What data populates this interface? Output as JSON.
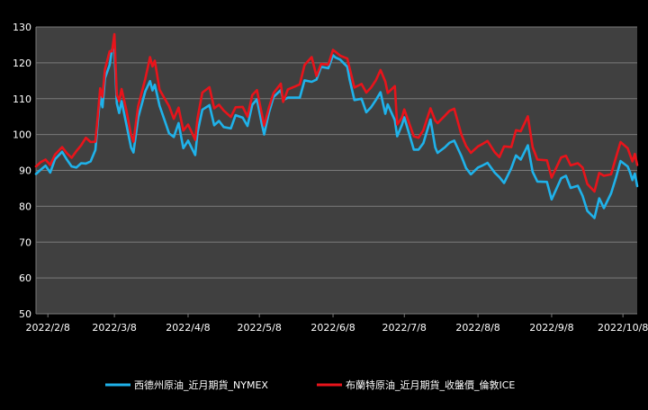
{
  "chart_data": {
    "type": "line",
    "title": "",
    "xlabel": "",
    "ylabel": "",
    "ylim": [
      50,
      130
    ],
    "yticks": [
      50,
      60,
      70,
      80,
      90,
      100,
      110,
      120,
      130
    ],
    "xlim": [
      "2022-02-03",
      "2022-10-14"
    ],
    "xtick_labels": [
      "2022/2/8",
      "2022/3/8",
      "2022/4/8",
      "2022/5/8",
      "2022/6/8",
      "2022/7/8",
      "2022/8/8",
      "2022/9/8",
      "2022/10/8"
    ],
    "grid": true,
    "legend_position": "bottom",
    "colors": {
      "background": "#000000",
      "plot_area": "#404040",
      "grid": "#7a7a7a",
      "text": "#ffffff"
    },
    "series": [
      {
        "name": "西德州原油_近月期貨_NYMEX",
        "color": "#1fb2ea",
        "points": [
          [
            "2022-02-03",
            89.0
          ],
          [
            "2022-02-05",
            90.2
          ],
          [
            "2022-02-07",
            91.3
          ],
          [
            "2022-02-09",
            89.4
          ],
          [
            "2022-02-11",
            93.1
          ],
          [
            "2022-02-14",
            95.2
          ],
          [
            "2022-02-16",
            93.0
          ],
          [
            "2022-02-18",
            91.1
          ],
          [
            "2022-02-20",
            90.8
          ],
          [
            "2022-02-22",
            92.0
          ],
          [
            "2022-02-24",
            91.9
          ],
          [
            "2022-02-26",
            92.5
          ],
          [
            "2022-02-28",
            95.7
          ],
          [
            "2022-03-01",
            103.4
          ],
          [
            "2022-03-02",
            110.5
          ],
          [
            "2022-03-03",
            107.6
          ],
          [
            "2022-03-04",
            115.7
          ],
          [
            "2022-03-06",
            119.4
          ],
          [
            "2022-03-07",
            123.7
          ],
          [
            "2022-03-08",
            123.7
          ],
          [
            "2022-03-09",
            108.7
          ],
          [
            "2022-03-10",
            106.0
          ],
          [
            "2022-03-11",
            109.3
          ],
          [
            "2022-03-13",
            103.0
          ],
          [
            "2022-03-15",
            96.4
          ],
          [
            "2022-03-16",
            95.0
          ],
          [
            "2022-03-18",
            104.7
          ],
          [
            "2022-03-21",
            112.1
          ],
          [
            "2022-03-23",
            114.9
          ],
          [
            "2022-03-24",
            112.3
          ],
          [
            "2022-03-25",
            113.9
          ],
          [
            "2022-03-27",
            108.0
          ],
          [
            "2022-03-29",
            104.2
          ],
          [
            "2022-03-31",
            100.3
          ],
          [
            "2022-04-02",
            99.3
          ],
          [
            "2022-04-04",
            103.2
          ],
          [
            "2022-04-06",
            96.2
          ],
          [
            "2022-04-08",
            98.3
          ],
          [
            "2022-04-11",
            94.3
          ],
          [
            "2022-04-12",
            100.6
          ],
          [
            "2022-04-14",
            106.9
          ],
          [
            "2022-04-17",
            108.2
          ],
          [
            "2022-04-19",
            102.6
          ],
          [
            "2022-04-21",
            103.8
          ],
          [
            "2022-04-23",
            102.1
          ],
          [
            "2022-04-26",
            101.7
          ],
          [
            "2022-04-28",
            105.4
          ],
          [
            "2022-05-01",
            104.7
          ],
          [
            "2022-05-03",
            102.4
          ],
          [
            "2022-05-05",
            108.3
          ],
          [
            "2022-05-07",
            109.8
          ],
          [
            "2022-05-09",
            103.1
          ],
          [
            "2022-05-10",
            100.0
          ],
          [
            "2022-05-12",
            106.1
          ],
          [
            "2022-05-14",
            110.5
          ],
          [
            "2022-05-17",
            112.4
          ],
          [
            "2022-05-18",
            109.6
          ],
          [
            "2022-05-20",
            110.3
          ],
          [
            "2022-05-23",
            110.3
          ],
          [
            "2022-05-25",
            110.3
          ],
          [
            "2022-05-27",
            115.1
          ],
          [
            "2022-05-30",
            114.7
          ],
          [
            "2022-06-01",
            115.3
          ],
          [
            "2022-06-03",
            118.9
          ],
          [
            "2022-06-06",
            118.5
          ],
          [
            "2022-06-08",
            122.1
          ],
          [
            "2022-06-09",
            121.5
          ],
          [
            "2022-06-11",
            120.9
          ],
          [
            "2022-06-14",
            118.9
          ],
          [
            "2022-06-15",
            115.3
          ],
          [
            "2022-06-17",
            109.6
          ],
          [
            "2022-06-20",
            110.0
          ],
          [
            "2022-06-22",
            106.2
          ],
          [
            "2022-06-24",
            107.6
          ],
          [
            "2022-06-26",
            109.6
          ],
          [
            "2022-06-28",
            111.8
          ],
          [
            "2022-06-30",
            105.8
          ],
          [
            "2022-07-01",
            108.4
          ],
          [
            "2022-07-04",
            104.0
          ],
          [
            "2022-07-05",
            99.5
          ],
          [
            "2022-07-07",
            102.7
          ],
          [
            "2022-07-08",
            104.8
          ],
          [
            "2022-07-12",
            95.8
          ],
          [
            "2022-07-14",
            95.8
          ],
          [
            "2022-07-16",
            97.6
          ],
          [
            "2022-07-19",
            104.2
          ],
          [
            "2022-07-21",
            96.4
          ],
          [
            "2022-07-22",
            94.9
          ],
          [
            "2022-07-25",
            96.4
          ],
          [
            "2022-07-27",
            97.7
          ],
          [
            "2022-07-29",
            98.3
          ],
          [
            "2022-08-01",
            94.0
          ],
          [
            "2022-08-03",
            90.6
          ],
          [
            "2022-08-05",
            88.9
          ],
          [
            "2022-08-08",
            90.8
          ],
          [
            "2022-08-10",
            91.4
          ],
          [
            "2022-08-12",
            92.1
          ],
          [
            "2022-08-15",
            89.4
          ],
          [
            "2022-08-17",
            88.1
          ],
          [
            "2022-08-19",
            86.5
          ],
          [
            "2022-08-22",
            90.6
          ],
          [
            "2022-08-24",
            94.2
          ],
          [
            "2022-08-26",
            93.0
          ],
          [
            "2022-08-29",
            97.0
          ],
          [
            "2022-08-31",
            89.6
          ],
          [
            "2022-09-02",
            86.9
          ],
          [
            "2022-09-06",
            86.8
          ],
          [
            "2022-09-08",
            81.9
          ],
          [
            "2022-09-12",
            87.8
          ],
          [
            "2022-09-14",
            88.5
          ],
          [
            "2022-09-16",
            85.1
          ],
          [
            "2022-09-19",
            85.7
          ],
          [
            "2022-09-21",
            82.9
          ],
          [
            "2022-09-23",
            78.7
          ],
          [
            "2022-09-26",
            76.7
          ],
          [
            "2022-09-28",
            82.2
          ],
          [
            "2022-09-30",
            79.5
          ],
          [
            "2022-10-03",
            83.6
          ],
          [
            "2022-10-05",
            87.8
          ],
          [
            "2022-10-07",
            92.6
          ],
          [
            "2022-10-10",
            91.1
          ],
          [
            "2022-10-11",
            89.4
          ],
          [
            "2022-10-12",
            87.3
          ],
          [
            "2022-10-13",
            89.1
          ],
          [
            "2022-10-14",
            85.6
          ]
        ]
      },
      {
        "name": "布蘭特原油_近月期貨_收盤價_倫敦ICE",
        "color": "#e8141b",
        "points": [
          [
            "2022-02-03",
            91.1
          ],
          [
            "2022-02-05",
            92.3
          ],
          [
            "2022-02-07",
            93.0
          ],
          [
            "2022-02-09",
            91.5
          ],
          [
            "2022-02-11",
            94.4
          ],
          [
            "2022-02-14",
            96.5
          ],
          [
            "2022-02-16",
            94.8
          ],
          [
            "2022-02-18",
            93.5
          ],
          [
            "2022-02-20",
            95.4
          ],
          [
            "2022-02-22",
            97.0
          ],
          [
            "2022-02-24",
            99.1
          ],
          [
            "2022-02-26",
            97.9
          ],
          [
            "2022-02-28",
            98.0
          ],
          [
            "2022-03-01",
            105.0
          ],
          [
            "2022-03-02",
            112.9
          ],
          [
            "2022-03-03",
            110.5
          ],
          [
            "2022-03-04",
            118.1
          ],
          [
            "2022-03-06",
            123.2
          ],
          [
            "2022-03-07",
            123.2
          ],
          [
            "2022-03-08",
            128.0
          ],
          [
            "2022-03-09",
            111.1
          ],
          [
            "2022-03-10",
            109.3
          ],
          [
            "2022-03-11",
            112.7
          ],
          [
            "2022-03-13",
            106.9
          ],
          [
            "2022-03-15",
            99.9
          ],
          [
            "2022-03-16",
            98.0
          ],
          [
            "2022-03-18",
            107.9
          ],
          [
            "2022-03-21",
            115.6
          ],
          [
            "2022-03-23",
            121.6
          ],
          [
            "2022-03-24",
            119.0
          ],
          [
            "2022-03-25",
            120.6
          ],
          [
            "2022-03-27",
            112.5
          ],
          [
            "2022-03-29",
            110.2
          ],
          [
            "2022-03-31",
            107.9
          ],
          [
            "2022-04-02",
            104.4
          ],
          [
            "2022-04-04",
            107.5
          ],
          [
            "2022-04-06",
            101.1
          ],
          [
            "2022-04-08",
            102.8
          ],
          [
            "2022-04-11",
            98.5
          ],
          [
            "2022-04-12",
            104.6
          ],
          [
            "2022-04-14",
            111.7
          ],
          [
            "2022-04-17",
            113.2
          ],
          [
            "2022-04-19",
            107.3
          ],
          [
            "2022-04-21",
            108.3
          ],
          [
            "2022-04-23",
            106.7
          ],
          [
            "2022-04-26",
            104.9
          ],
          [
            "2022-04-28",
            107.6
          ],
          [
            "2022-05-01",
            107.7
          ],
          [
            "2022-05-03",
            105.0
          ],
          [
            "2022-05-05",
            111.0
          ],
          [
            "2022-05-07",
            112.4
          ],
          [
            "2022-05-09",
            105.9
          ],
          [
            "2022-05-10",
            102.5
          ],
          [
            "2022-05-12",
            107.5
          ],
          [
            "2022-05-14",
            111.6
          ],
          [
            "2022-05-17",
            114.2
          ],
          [
            "2022-05-18",
            109.1
          ],
          [
            "2022-05-20",
            112.6
          ],
          [
            "2022-05-23",
            113.4
          ],
          [
            "2022-05-25",
            114.0
          ],
          [
            "2022-05-27",
            119.4
          ],
          [
            "2022-05-30",
            121.6
          ],
          [
            "2022-06-01",
            116.3
          ],
          [
            "2022-06-03",
            119.7
          ],
          [
            "2022-06-06",
            119.5
          ],
          [
            "2022-06-08",
            123.6
          ],
          [
            "2022-06-09",
            123.1
          ],
          [
            "2022-06-11",
            122.0
          ],
          [
            "2022-06-14",
            121.2
          ],
          [
            "2022-06-15",
            118.5
          ],
          [
            "2022-06-17",
            113.1
          ],
          [
            "2022-06-20",
            114.1
          ],
          [
            "2022-06-22",
            111.7
          ],
          [
            "2022-06-24",
            113.1
          ],
          [
            "2022-06-26",
            115.1
          ],
          [
            "2022-06-28",
            118.0
          ],
          [
            "2022-06-30",
            114.8
          ],
          [
            "2022-07-01",
            111.6
          ],
          [
            "2022-07-04",
            113.5
          ],
          [
            "2022-07-05",
            102.8
          ],
          [
            "2022-07-07",
            104.7
          ],
          [
            "2022-07-08",
            107.0
          ],
          [
            "2022-07-12",
            99.5
          ],
          [
            "2022-07-14",
            99.1
          ],
          [
            "2022-07-16",
            101.2
          ],
          [
            "2022-07-19",
            107.3
          ],
          [
            "2022-07-21",
            103.9
          ],
          [
            "2022-07-22",
            103.2
          ],
          [
            "2022-07-25",
            105.2
          ],
          [
            "2022-07-27",
            106.6
          ],
          [
            "2022-07-29",
            107.2
          ],
          [
            "2022-08-01",
            100.0
          ],
          [
            "2022-08-03",
            96.8
          ],
          [
            "2022-08-05",
            94.9
          ],
          [
            "2022-08-08",
            96.7
          ],
          [
            "2022-08-10",
            97.4
          ],
          [
            "2022-08-12",
            98.2
          ],
          [
            "2022-08-15",
            95.1
          ],
          [
            "2022-08-17",
            93.7
          ],
          [
            "2022-08-19",
            96.7
          ],
          [
            "2022-08-22",
            96.5
          ],
          [
            "2022-08-24",
            101.2
          ],
          [
            "2022-08-26",
            100.9
          ],
          [
            "2022-08-29",
            105.1
          ],
          [
            "2022-08-31",
            96.5
          ],
          [
            "2022-09-02",
            93.0
          ],
          [
            "2022-09-06",
            92.8
          ],
          [
            "2022-09-08",
            88.0
          ],
          [
            "2022-09-12",
            93.6
          ],
          [
            "2022-09-14",
            94.1
          ],
          [
            "2022-09-16",
            91.4
          ],
          [
            "2022-09-19",
            92.0
          ],
          [
            "2022-09-21",
            90.8
          ],
          [
            "2022-09-23",
            86.2
          ],
          [
            "2022-09-26",
            84.1
          ],
          [
            "2022-09-28",
            89.3
          ],
          [
            "2022-09-30",
            88.5
          ],
          [
            "2022-10-03",
            88.9
          ],
          [
            "2022-10-05",
            93.4
          ],
          [
            "2022-10-07",
            97.9
          ],
          [
            "2022-10-10",
            96.2
          ],
          [
            "2022-10-11",
            94.3
          ],
          [
            "2022-10-12",
            92.5
          ],
          [
            "2022-10-13",
            94.6
          ],
          [
            "2022-10-14",
            91.5
          ]
        ]
      }
    ]
  }
}
